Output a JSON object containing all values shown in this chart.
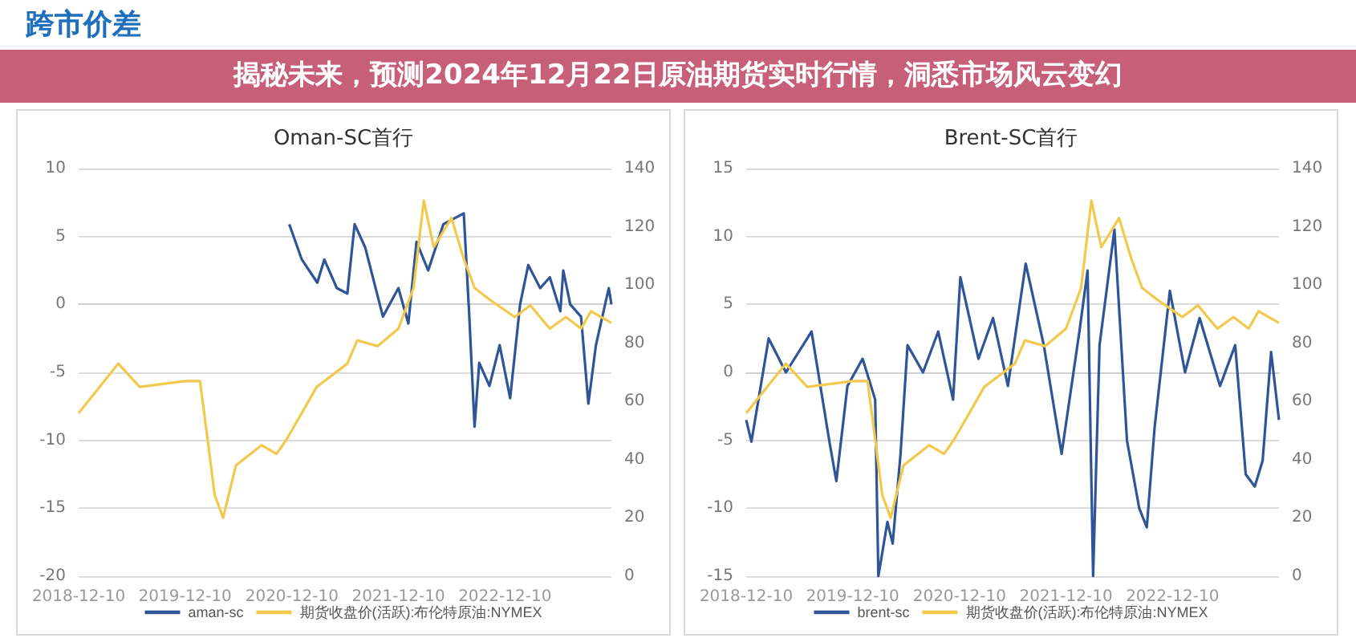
{
  "chart_data": [
    {
      "type": "line",
      "title": "Oman-SC首行",
      "annotations": [
        "跨市价差",
        "揭秘未来，预测2024年12月22日原油期货实时行情，洞悉市场风云变幻"
      ],
      "legend": "bottom",
      "grid": "y",
      "marker": "none",
      "line_style": "solid",
      "xlim": [
        "2018-12-10",
        "2023-12-10"
      ],
      "xticks": [
        {
          "value": "2018-12-10",
          "label": "2018-12-10"
        },
        {
          "value": "2019-12-10",
          "label": "2019-12-10"
        },
        {
          "value": "2020-12-10",
          "label": "2020-12-10"
        },
        {
          "value": "2021-12-10",
          "label": "2021-12-10"
        },
        {
          "value": "2022-12-10",
          "label": "2022-12-10"
        }
      ],
      "ylim": [
        -20,
        10
      ],
      "yticks": [
        -20,
        -15,
        -10,
        -5,
        0,
        5,
        10
      ],
      "y2lim": [
        0,
        140
      ],
      "y2ticks": [
        0,
        20,
        40,
        60,
        80,
        100,
        120,
        140
      ],
      "series": [
        {
          "name": "aman-sc",
          "color": "#2f5597",
          "x": [
            "2020-12-01",
            "2021-01-13",
            "2021-03-07",
            "2021-03-31",
            "2021-05-13",
            "2021-06-18",
            "2021-07-13",
            "2021-08-18",
            "2021-10-18",
            "2021-12-10",
            "2022-01-13",
            "2022-02-10",
            "2022-03-22",
            "2022-05-13",
            "2022-07-22",
            "2022-08-10",
            "2022-08-28",
            "2022-09-13",
            "2022-10-18",
            "2022-11-22",
            "2022-12-28",
            "2023-01-31",
            "2023-02-28",
            "2023-04-10",
            "2023-05-13",
            "2023-06-18",
            "2023-06-28",
            "2023-07-22",
            "2023-08-28",
            "2023-09-22",
            "2023-10-18",
            "2023-12-01",
            "2023-12-10"
          ],
          "values": [
            5.9,
            3.3,
            1.6,
            3.3,
            1.2,
            0.8,
            5.9,
            4.2,
            -0.9,
            1.2,
            -1.4,
            4.6,
            2.5,
            5.9,
            6.7,
            -0.9,
            -9,
            -4.3,
            -6,
            -3,
            -6.9,
            0,
            2.9,
            1.2,
            2,
            -0.5,
            2.5,
            0,
            -0.9,
            -7.3,
            -3,
            1.2,
            0
          ]
        },
        {
          "name": "期货收盘价(活跃):布伦特原油:NYMEX",
          "color": "#f2c94c",
          "axis": "y2",
          "x": [
            "2018-12-10",
            "2019-04-25",
            "2019-07-07",
            "2019-12-10",
            "2020-01-30",
            "2020-02-25",
            "2020-03-20",
            "2020-04-18",
            "2020-06-01",
            "2020-08-28",
            "2020-10-18",
            "2020-11-22",
            "2021-03-05",
            "2021-06-18",
            "2021-07-22",
            "2021-09-30",
            "2021-12-10",
            "2022-01-31",
            "2022-03-07",
            "2022-04-10",
            "2022-06-10",
            "2022-07-22",
            "2022-08-28",
            "2022-10-18",
            "2023-01-13",
            "2023-03-07",
            "2023-05-13",
            "2023-07-07",
            "2023-08-28",
            "2023-10-01",
            "2023-12-10"
          ],
          "values": [
            56,
            73,
            65,
            67,
            67,
            47,
            28,
            20,
            38,
            45,
            42,
            47,
            65,
            73,
            81,
            79,
            85,
            99,
            129,
            113,
            123,
            109,
            99,
            95,
            89,
            93,
            85,
            89,
            85,
            91,
            87
          ]
        }
      ]
    },
    {
      "type": "line",
      "title": "Brent-SC首行",
      "legend": "bottom",
      "grid": "y",
      "marker": "none",
      "line_style": "solid",
      "xlim": [
        "2018-12-10",
        "2023-12-10"
      ],
      "xticks": [
        {
          "value": "2018-12-10",
          "label": "2018-12-10"
        },
        {
          "value": "2019-12-10",
          "label": "2019-12-10"
        },
        {
          "value": "2020-12-10",
          "label": "2020-12-10"
        },
        {
          "value": "2021-12-10",
          "label": "2021-12-10"
        },
        {
          "value": "2022-12-10",
          "label": "2022-12-10"
        }
      ],
      "ylim": [
        -15,
        15
      ],
      "yticks": [
        -15,
        -10,
        -5,
        0,
        5,
        10,
        15
      ],
      "y2lim": [
        0,
        140
      ],
      "y2ticks": [
        0,
        20,
        40,
        60,
        80,
        100,
        120,
        140
      ],
      "series": [
        {
          "name": "brent-sc",
          "color": "#2f5597",
          "x": [
            "2018-12-10",
            "2018-12-28",
            "2019-02-25",
            "2019-04-25",
            "2019-07-22",
            "2019-09-22",
            "2019-10-15",
            "2019-11-22",
            "2020-01-13",
            "2020-02-25",
            "2020-03-07",
            "2020-04-07",
            "2020-04-25",
            "2020-05-22",
            "2020-06-15",
            "2020-08-07",
            "2020-09-28",
            "2020-11-18",
            "2020-12-13",
            "2021-02-13",
            "2021-04-04",
            "2021-05-25",
            "2021-07-25",
            "2021-09-25",
            "2021-11-25",
            "2022-01-25",
            "2022-02-22",
            "2022-03-13",
            "2022-04-04",
            "2022-05-25",
            "2022-07-07",
            "2022-08-18",
            "2022-09-13",
            "2022-10-10",
            "2022-12-01",
            "2023-01-22",
            "2023-03-13",
            "2023-05-22",
            "2023-07-13",
            "2023-08-18",
            "2023-09-18",
            "2023-10-15",
            "2023-11-13",
            "2023-12-10"
          ],
          "values": [
            -3.5,
            -5.1,
            2.5,
            0,
            3,
            -5.2,
            -8,
            -1,
            1,
            -2,
            -15,
            -11,
            -12.6,
            -6,
            2,
            0,
            3,
            -2,
            7,
            1,
            4,
            -1,
            8,
            2,
            -6,
            3,
            7.5,
            -15,
            2,
            10.5,
            -5,
            -10,
            -11.4,
            -4,
            6,
            0,
            4,
            -1,
            2,
            -7.5,
            -8.4,
            -6.5,
            1.5,
            -3.5
          ]
        },
        {
          "name": "期货收盘价(活跃):布伦特原油:NYMEX",
          "color": "#f2c94c",
          "axis": "y2",
          "x": [
            "2018-12-10",
            "2019-04-25",
            "2019-07-07",
            "2019-12-10",
            "2020-01-30",
            "2020-02-25",
            "2020-03-20",
            "2020-04-18",
            "2020-06-01",
            "2020-08-28",
            "2020-10-18",
            "2020-11-22",
            "2021-03-05",
            "2021-06-18",
            "2021-07-22",
            "2021-09-30",
            "2021-12-10",
            "2022-01-31",
            "2022-03-07",
            "2022-04-10",
            "2022-06-10",
            "2022-07-22",
            "2022-08-28",
            "2022-10-18",
            "2023-01-13",
            "2023-03-07",
            "2023-05-13",
            "2023-07-07",
            "2023-08-28",
            "2023-10-01",
            "2023-12-10"
          ],
          "values": [
            56,
            73,
            65,
            67,
            67,
            47,
            28,
            20,
            38,
            45,
            42,
            47,
            65,
            73,
            81,
            79,
            85,
            99,
            129,
            113,
            123,
            109,
            99,
            95,
            89,
            93,
            85,
            89,
            85,
            91,
            87
          ]
        }
      ]
    }
  ]
}
